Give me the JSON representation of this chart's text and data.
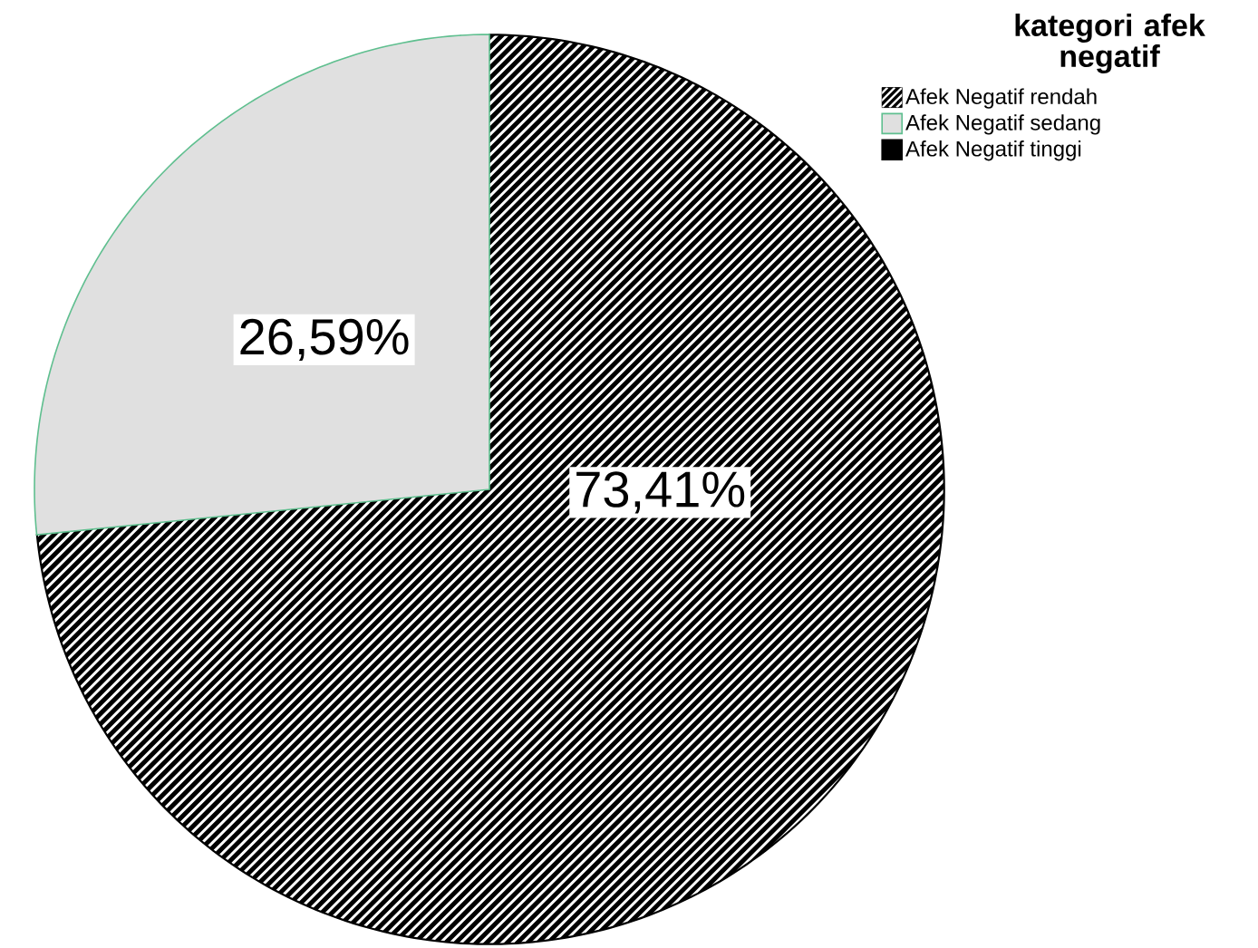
{
  "chart_data": {
    "type": "pie",
    "legend_title": "kategori afek negatif",
    "categories": [
      "Afek Negatif rendah",
      "Afek Negatif sedang",
      "Afek Negatif tinggi"
    ],
    "values": [
      73.41,
      26.59,
      0
    ],
    "colors": [
      "#000000",
      "#e0e0e0",
      "#000000"
    ],
    "value_labels": [
      "73,41%",
      "26,59%",
      null
    ],
    "legend": "top right"
  }
}
